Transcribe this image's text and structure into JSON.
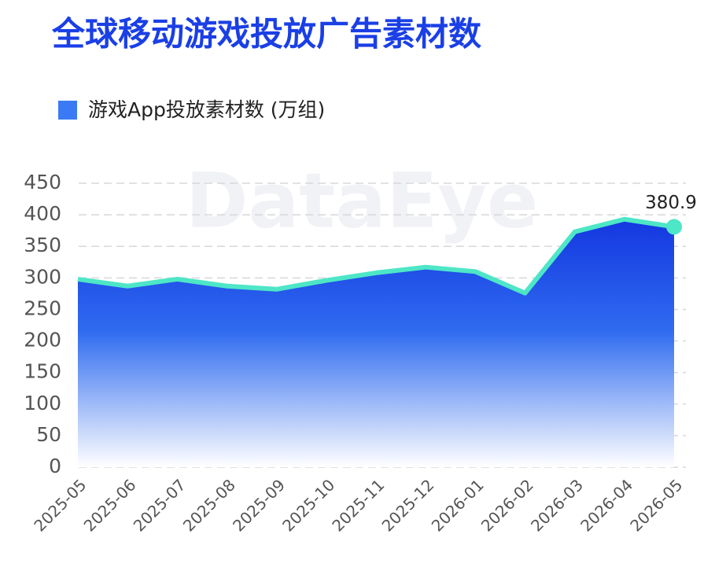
{
  "chart_data": {
    "type": "area",
    "title": "全球移动游戏投放广告素材数",
    "watermark": "DataEye",
    "categories": [
      "2025-05",
      "2025-06",
      "2025-07",
      "2025-08",
      "2025-09",
      "2025-10",
      "2025-11",
      "2025-12",
      "2026-01",
      "2026-02",
      "2026-03",
      "2026-04",
      "2026-05"
    ],
    "series": [
      {
        "name": "游戏App投放素材数 (万组)",
        "color": "#2f6bf0",
        "line_color": "#4de6c6",
        "values": [
          298,
          287,
          298,
          287,
          282,
          296,
          308,
          317,
          310,
          276,
          373,
          393,
          380.9
        ]
      }
    ],
    "ylim": [
      0,
      450
    ],
    "yticks": [
      0,
      50,
      100,
      150,
      200,
      250,
      300,
      350,
      400,
      450
    ],
    "grid": true
  }
}
